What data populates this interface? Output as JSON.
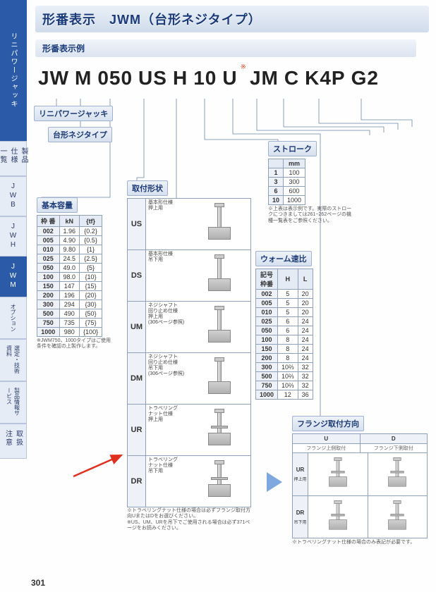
{
  "nav": {
    "main": "リニパワージャッキ",
    "items": [
      "製品仕様一覧",
      "JWB",
      "JWH",
      "JWM",
      "オプション",
      "選定・技術資料",
      "製品情報サービス",
      "取扱注意"
    ],
    "active_index": 3
  },
  "header": {
    "title": "形番表示　JWM（台形ネジタイプ）",
    "subtitle": "形番表示例"
  },
  "model": {
    "segments": [
      "JW",
      "M",
      "050",
      "US",
      "H",
      "10",
      "U",
      "JM",
      "C",
      "K4P",
      "G2"
    ],
    "super_after_index": 6
  },
  "callouts": {
    "linipower": "リニパワージャッキ",
    "trapezoid": "台形ネジタイプ",
    "capacity_head": "基本容量",
    "mounting_head": "取付形状",
    "stroke_head": "ストローク",
    "wormratio_head": "ウォーム速比",
    "flange_head": "フランジ取付方向"
  },
  "capacity": {
    "columns": [
      "枠 番",
      "kN",
      "{tf}"
    ],
    "rows": [
      [
        "002",
        "1.96",
        "{0.2}"
      ],
      [
        "005",
        "4.90",
        "{0.5}"
      ],
      [
        "010",
        "9.80",
        "{1}"
      ],
      [
        "025",
        "24.5",
        "{2.5}"
      ],
      [
        "050",
        "49.0",
        "{5}"
      ],
      [
        "100",
        "98.0",
        "{10}"
      ],
      [
        "150",
        "147",
        "{15}"
      ],
      [
        "200",
        "196",
        "{20}"
      ],
      [
        "300",
        "294",
        "{30}"
      ],
      [
        "500",
        "490",
        "{50}"
      ],
      [
        "750",
        "735",
        "{75}"
      ],
      [
        "1000",
        "980",
        "{100}"
      ]
    ],
    "note": "※JWM750、1000タイプはご使用条件を確認の上製作します。"
  },
  "mounting": {
    "cards": [
      {
        "code": "US",
        "desc": "基本形仕様\n押上用",
        "ref": ""
      },
      {
        "code": "DS",
        "desc": "基本形仕様\n吊下用",
        "ref": ""
      },
      {
        "code": "UM",
        "desc": "ネジシャフト\n回り止め仕様\n押上用",
        "ref": "(306ページ参照)"
      },
      {
        "code": "DM",
        "desc": "ネジシャフト\n回り止め仕様\n吊下用",
        "ref": "(306ページ参照)"
      },
      {
        "code": "UR",
        "desc": "トラベリング\nナット仕様\n押上用",
        "ref": ""
      },
      {
        "code": "DR",
        "desc": "トラベリング\nナット仕様\n吊下用",
        "ref": ""
      }
    ],
    "note": "※トラベリングナット仕様の場合は必ずフランジ取付方向UまたはDをお選びください。\n※US、UM、URを吊下でご使用される場合は必ず371ページをお読みください。"
  },
  "stroke": {
    "header": "mm",
    "rows": [
      [
        "1",
        "100"
      ],
      [
        "3",
        "300"
      ],
      [
        "6",
        "600"
      ],
      [
        "10",
        "1000"
      ]
    ],
    "note": "※上表は表示例です。実際のストロークにつきましては261~262ページの機種一覧表をご参照ください。"
  },
  "wormratio": {
    "columns": [
      "記号\n枠番",
      "H",
      "L"
    ],
    "rows": [
      [
        "002",
        "5",
        "20"
      ],
      [
        "005",
        "5",
        "20"
      ],
      [
        "010",
        "5",
        "20"
      ],
      [
        "025",
        "6",
        "24"
      ],
      [
        "050",
        "6",
        "24"
      ],
      [
        "100",
        "8",
        "24"
      ],
      [
        "150",
        "8",
        "24"
      ],
      [
        "200",
        "8",
        "24"
      ],
      [
        "300",
        "10⅔",
        "32"
      ],
      [
        "500",
        "10⅔",
        "32"
      ],
      [
        "750",
        "10⅔",
        "32"
      ],
      [
        "1000",
        "12",
        "36"
      ]
    ]
  },
  "flange": {
    "cols": [
      "U",
      "D"
    ],
    "col_sub": [
      "フランジ上側取付",
      "フランジ下側取付"
    ],
    "rows": [
      {
        "code": "UR",
        "sub": "押上用"
      },
      {
        "code": "DR",
        "sub": "吊下用"
      }
    ],
    "note": "※トラベリングナット仕様の場合のみ表記が必要です。"
  },
  "page_number": "301"
}
